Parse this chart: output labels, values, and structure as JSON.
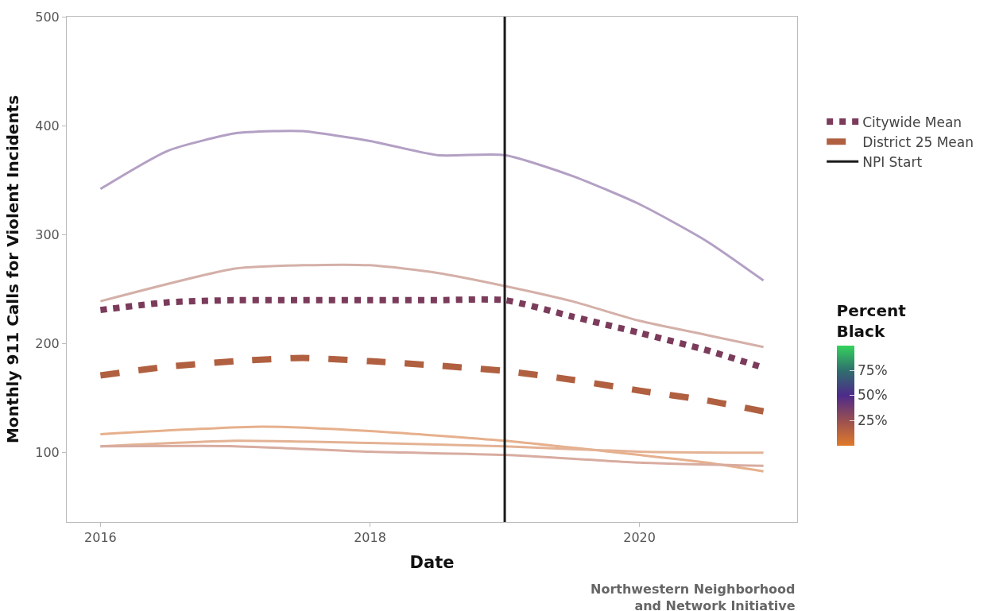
{
  "chart_data": {
    "type": "line",
    "xlabel": "Date",
    "ylabel": "Monthly 911 Calls for Violent Incidents",
    "clabel": "Percent Black",
    "xlim": [
      2015.75,
      2021.17
    ],
    "xticks": [
      2016,
      2018,
      2020
    ],
    "ylim": [
      36.5,
      500
    ],
    "yticks": [
      100,
      200,
      300,
      400,
      500
    ],
    "clim": [
      0,
      100
    ],
    "cticks": [
      {
        "value": 25,
        "label": "25%"
      },
      {
        "value": 50,
        "label": "50%"
      },
      {
        "value": 75,
        "label": "75%"
      }
    ],
    "legend": "right",
    "series": [
      {
        "color": "#b3a0c4",
        "x": [
          2016,
          2016.5,
          2017,
          2017.28,
          2017.5,
          2018,
          2018.5,
          2019,
          2019.5,
          2020,
          2020.5,
          2020.92
        ],
        "values": [
          342,
          377,
          393,
          395,
          395,
          386,
          373,
          373,
          354,
          328,
          294,
          258
        ]
      },
      {
        "color": "#d4b0a8",
        "x": [
          2016,
          2017,
          2017.5,
          2018,
          2018.5,
          2019,
          2019.5,
          2020,
          2020.5,
          2020.92
        ],
        "values": [
          239,
          269,
          272,
          272,
          265,
          253,
          239,
          221,
          208,
          197
        ]
      },
      {
        "color": "#e6b08c",
        "x": [
          2016,
          2017.2,
          2018,
          2019,
          2020,
          2020.5,
          2020.92
        ],
        "values": [
          117,
          124,
          120,
          111,
          98,
          91,
          83
        ]
      },
      {
        "color": "#e4b294",
        "x": [
          2016,
          2017,
          2018,
          2019,
          2020,
          2020.92
        ],
        "values": [
          106,
          111,
          109,
          106,
          101,
          100
        ]
      },
      {
        "color": "#d8aca0",
        "x": [
          2016,
          2017,
          2018,
          2019,
          2020,
          2020.92
        ],
        "values": [
          106,
          106,
          101,
          98,
          91,
          88
        ]
      },
      {
        "name": "Citywide Mean",
        "color": "#7b3b5a",
        "line_style": "dotted",
        "x": [
          2016,
          2016.5,
          2017,
          2017.5,
          2018,
          2018.5,
          2019,
          2019.5,
          2020,
          2020.5,
          2020.92
        ],
        "values": [
          231,
          238,
          240,
          240,
          240,
          240,
          240,
          225,
          210,
          194,
          178
        ]
      },
      {
        "name": "District 25 Mean",
        "color": "#b06040",
        "line_style": "dashed",
        "x": [
          2016,
          2016.5,
          2017,
          2017.5,
          2018,
          2018.5,
          2019,
          2019.5,
          2020,
          2020.5,
          2020.92
        ],
        "values": [
          171,
          179,
          184,
          187,
          184,
          180,
          175,
          167,
          157,
          148,
          138
        ]
      },
      {
        "name": "NPI Start",
        "color": "#1a1a1a",
        "line_style": "solid",
        "x": [
          2019,
          2019
        ],
        "values": [
          36.5,
          500
        ]
      }
    ],
    "annotations": [
      "Northwestern Neighborhood and Network Initiative"
    ]
  }
}
